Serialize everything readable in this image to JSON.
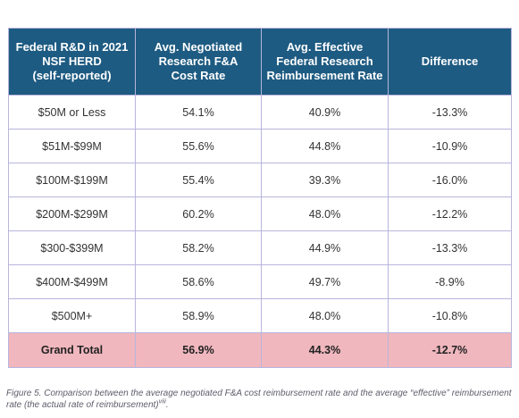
{
  "table": {
    "headers": [
      [
        "Federal R&D in 2021",
        "NSF HERD",
        "(self-reported)"
      ],
      [
        "Avg. Negotiated",
        "Research F&A",
        "Cost Rate"
      ],
      [
        "Avg. Effective",
        "Federal Research",
        "Reimbursement Rate"
      ],
      [
        "Difference"
      ]
    ],
    "rows": [
      [
        "$50M or Less",
        "54.1%",
        "40.9%",
        "-13.3%"
      ],
      [
        "$51M-$99M",
        "55.6%",
        "44.8%",
        "-10.9%"
      ],
      [
        "$100M-$199M",
        "55.4%",
        "39.3%",
        "-16.0%"
      ],
      [
        "$200M-$299M",
        "60.2%",
        "48.0%",
        "-12.2%"
      ],
      [
        "$300-$399M",
        "58.2%",
        "44.9%",
        "-13.3%"
      ],
      [
        "$400M-$499M",
        "58.6%",
        "49.7%",
        "-8.9%"
      ],
      [
        "$500M+",
        "58.9%",
        "48.0%",
        "-10.8%"
      ]
    ],
    "total": [
      "Grand Total",
      "56.9%",
      "44.3%",
      "-12.7%"
    ]
  },
  "caption": {
    "text": "Figure 5. Comparison between the average negotiated F&A cost reimbursement rate and the average “effective” reimbursement rate (the actual rate of reimbursement)",
    "superscript": "viii",
    "end": "."
  },
  "colors": {
    "header_bg": "#1e5b82",
    "total_bg": "#f0b7be",
    "border": "#b8b5dd"
  }
}
